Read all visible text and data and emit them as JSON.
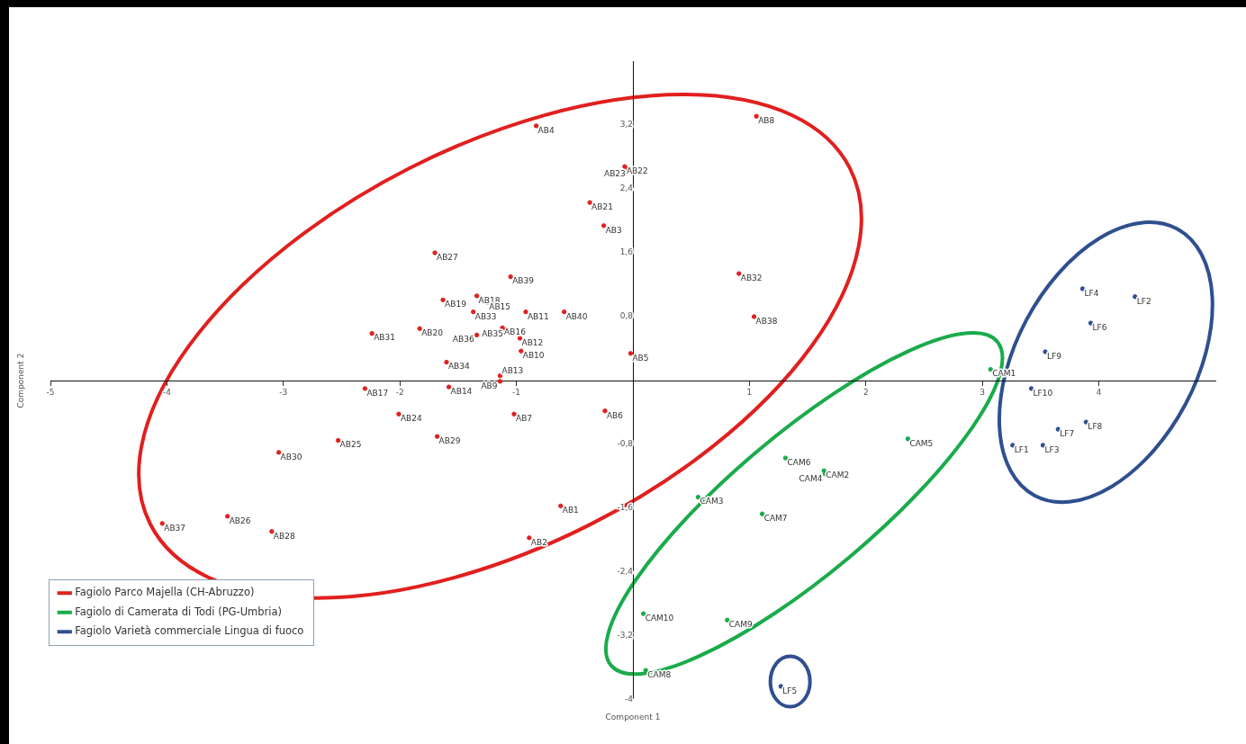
{
  "chart_data": {
    "type": "scatter",
    "xlabel": "Component 1",
    "ylabel": "Component 2",
    "xlim": [
      -5,
      5
    ],
    "ylim": [
      -4,
      4
    ],
    "xticks": [
      -5,
      -4,
      -3,
      -2,
      -1,
      1,
      2,
      3,
      4
    ],
    "yticks": [
      -4,
      {
        "value": -3.2,
        "label": "-3,2"
      },
      {
        "value": -2.4,
        "label": "-2,4"
      },
      {
        "value": -1.6,
        "label": "-1,6"
      },
      {
        "value": -0.8,
        "label": "-0,8"
      },
      {
        "value": 0.8,
        "label": "0,8"
      },
      {
        "value": 1.6,
        "label": "1,6"
      },
      {
        "value": 2.4,
        "label": "2,4"
      },
      {
        "value": 3.2,
        "label": "3,2"
      }
    ],
    "grid": false,
    "legend": "bottom left",
    "marker": "circle",
    "series": [
      {
        "name": "Fagiolo Parco Majella (CH-Abruzzo)",
        "color": "#e0201f",
        "x": [
          -0.83,
          -0.07,
          -0.04,
          -0.37,
          -0.25,
          -1.7,
          -1.05,
          -1.63,
          -1.34,
          -1.25,
          -1.37,
          -0.92,
          -0.59,
          -1.12,
          -1.09,
          -1.34,
          -0.97,
          -0.96,
          -1.83,
          -2.24,
          -1.6,
          -1.14,
          -1.14,
          -2.3,
          -1.58,
          -2.01,
          -1.02,
          -0.24,
          -1.68,
          -2.53,
          -3.04,
          -0.62,
          -0.89,
          -4.04,
          -3.48,
          -3.1,
          1.06,
          0.91,
          1.04,
          -0.02
        ],
        "values": [
          3.19,
          2.68,
          2.65,
          2.23,
          1.94,
          1.6,
          1.3,
          1.01,
          1.06,
          0.98,
          0.86,
          0.86,
          0.86,
          0.66,
          0.64,
          0.57,
          0.53,
          0.37,
          0.65,
          0.59,
          0.23,
          0.06,
          -0.01,
          -0.1,
          -0.08,
          -0.42,
          -0.42,
          -0.38,
          -0.7,
          -0.75,
          -0.9,
          -1.57,
          -1.97,
          -1.79,
          -1.7,
          -1.89,
          3.31,
          1.34,
          0.8,
          0.34
        ],
        "value_labels": [
          "AB4",
          "AB22",
          "AB23",
          "AB21",
          "AB3",
          "AB27",
          "AB39",
          "AB19",
          "AB18",
          "AB15",
          "AB33",
          "AB11",
          "AB40",
          "AB16",
          "AB35",
          "AB36",
          "AB12",
          "AB10",
          "AB20",
          "AB31",
          "AB34",
          "AB13",
          "AB9",
          "AB17",
          "AB14",
          "AB24",
          "AB7",
          "AB6",
          "AB29",
          "AB25",
          "AB30",
          "AB1",
          "AB2",
          "AB37",
          "AB26",
          "AB28",
          "AB8",
          "AB32",
          "AB38",
          "AB5"
        ]
      },
      {
        "name": "Fagiolo di Camerata di Todi (PG-Umbria)",
        "color": "#1aab4b",
        "x": [
          3.07,
          2.36,
          1.31,
          1.64,
          1.65,
          0.56,
          1.11,
          0.09,
          0.81,
          0.11
        ],
        "values": [
          0.14,
          -0.73,
          -0.97,
          -1.13,
          -1.17,
          -1.46,
          -1.67,
          -2.92,
          -3.0,
          -3.63
        ],
        "value_labels": [
          "CAM1",
          "CAM5",
          "CAM6",
          "CAM2",
          "CAM4",
          "CAM3",
          "CAM7",
          "CAM10",
          "CAM9",
          "CAM8"
        ]
      },
      {
        "name": "Fagiolo Varietà commerciale Lingua di fuoco",
        "color": "#2f4f8f",
        "x": [
          3.86,
          4.31,
          3.93,
          3.54,
          3.42,
          3.89,
          3.65,
          3.26,
          3.52,
          1.27
        ],
        "values": [
          1.15,
          1.05,
          0.72,
          0.36,
          -0.1,
          -0.52,
          -0.61,
          -0.81,
          -0.81,
          -3.83
        ],
        "value_labels": [
          "LF4",
          "LF2",
          "LF6",
          "LF9",
          "LF10",
          "LF8",
          "LF7",
          "LF1",
          "LF3",
          "LF5"
        ]
      }
    ]
  }
}
